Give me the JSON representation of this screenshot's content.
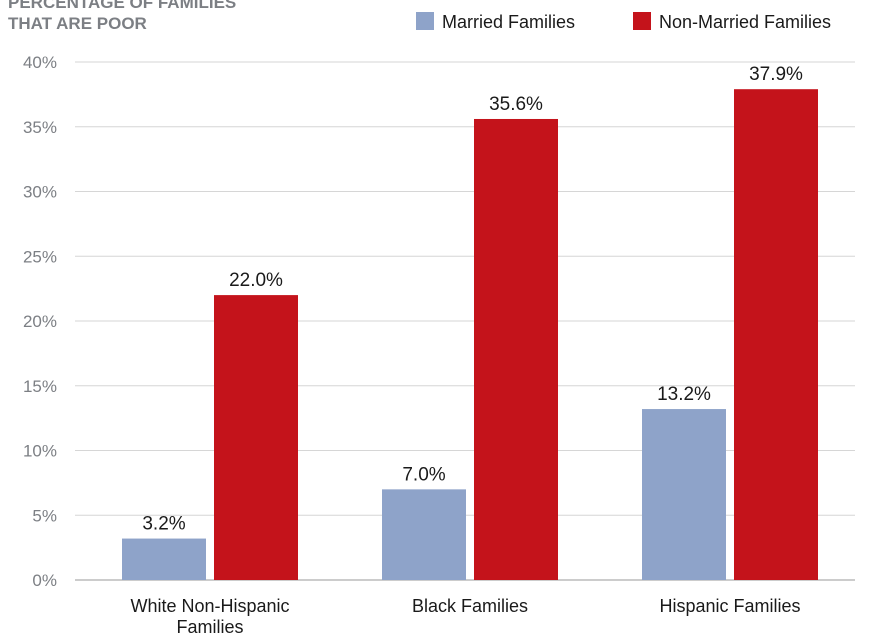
{
  "chart_data": {
    "type": "bar",
    "ylabel_lines": [
      "PERCENTAGE OF FAMILIES",
      "THAT ARE POOR"
    ],
    "categories": [
      [
        "White Non-Hispanic",
        "Families"
      ],
      [
        "Black Families"
      ],
      [
        "Hispanic Families"
      ]
    ],
    "series": [
      {
        "name": "Married Families",
        "color": "#8ea3c9",
        "values": [
          3.2,
          7.0,
          13.2
        ],
        "labels": [
          "3.2%",
          "7.0%",
          "13.2%"
        ]
      },
      {
        "name": "Non-Married Families",
        "color": "#c4131b",
        "values": [
          22.0,
          35.6,
          37.9
        ],
        "labels": [
          "22.0%",
          "35.6%",
          "37.9%"
        ]
      }
    ],
    "yticks": [
      "0%",
      "5%",
      "10%",
      "15%",
      "20%",
      "25%",
      "30%",
      "35%",
      "40%"
    ],
    "ylim": [
      0,
      40
    ],
    "grid": true,
    "legend_position": "top-right"
  }
}
